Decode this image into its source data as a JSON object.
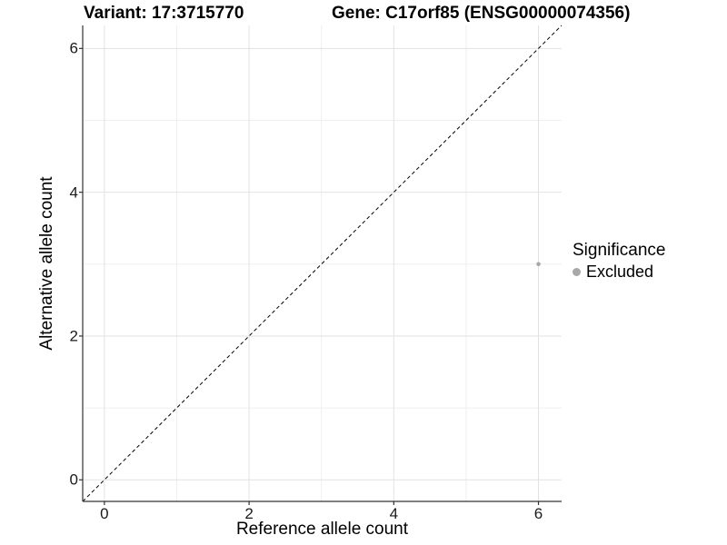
{
  "chart_data": {
    "type": "scatter",
    "title_left": "Variant: 17:3715770",
    "title_right": "Gene: C17orf85 (ENSG00000074356)",
    "xlabel": "Reference allele count",
    "ylabel": "Alternative allele count",
    "xlim": [
      -0.3,
      6.32
    ],
    "ylim": [
      -0.3,
      6.32
    ],
    "x_ticks": [
      0,
      2,
      4,
      6
    ],
    "y_ticks": [
      0,
      2,
      4,
      6
    ],
    "x_minor_ticks": [
      1,
      3,
      5
    ],
    "y_minor_ticks": [
      1,
      3,
      5
    ],
    "grid": "on",
    "identity_line": {
      "style": "dashed",
      "equation": "y = x"
    },
    "series": [
      {
        "name": "Excluded",
        "color": "#a8a8a8",
        "points": [
          [
            6,
            3
          ]
        ]
      }
    ],
    "legend": {
      "title": "Significance",
      "position": "right",
      "items": [
        {
          "label": "Excluded",
          "color": "#a8a8a8"
        }
      ]
    },
    "colors": {
      "grid_major": "#e2e2e2",
      "grid_minor": "#efefef",
      "axis_line": "#333333",
      "tick_mark": "#333333",
      "identity_line": "#000000",
      "point": "#a8a8a8"
    }
  }
}
